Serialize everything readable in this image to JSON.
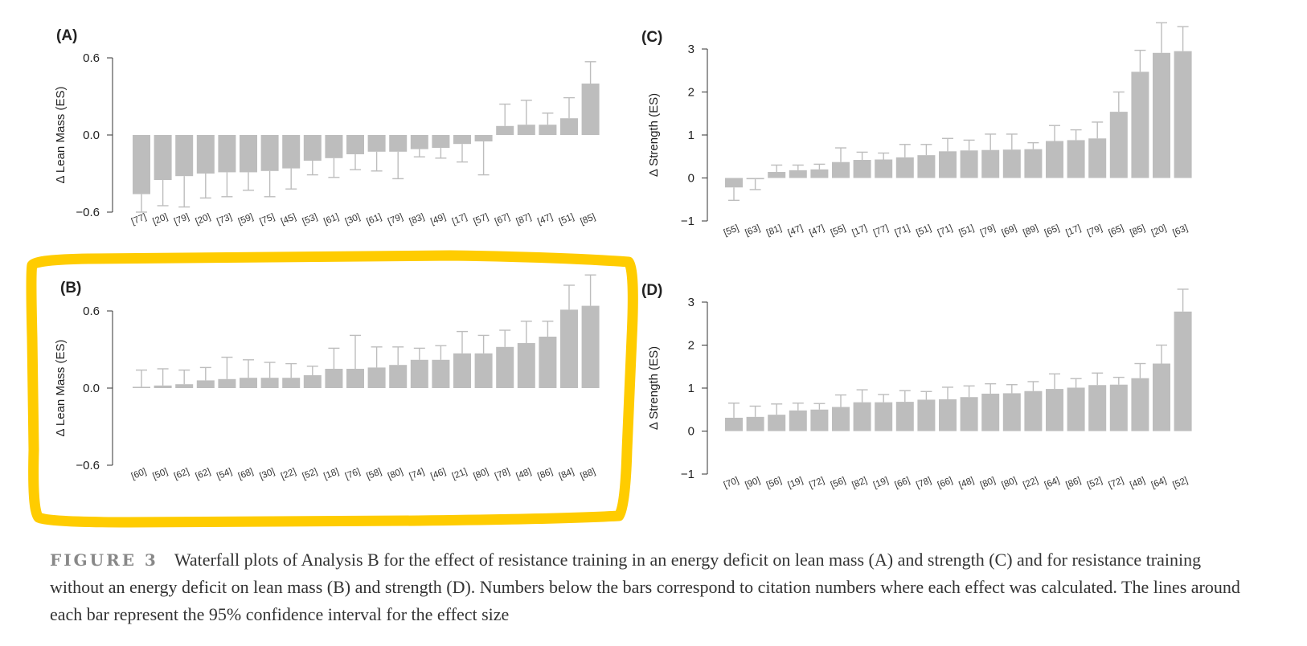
{
  "highlight_color": "#ffcc00",
  "bar_color": "#bdbdbd",
  "caption": {
    "label": "FIGURE 3",
    "text": "Waterfall plots of Analysis B for the effect of resistance training in an energy deficit on lean mass (A) and strength (C) and for resistance training without an energy deficit on lean mass (B) and strength (D). Numbers below the bars correspond to citation numbers where each effect was calculated. The lines around each bar represent the 95% confidence interval for the effect size"
  },
  "chart_data": [
    {
      "id": "A",
      "panel_label": "(A)",
      "type": "bar",
      "ylabel": "Δ Lean Mass (ES)",
      "ylim": [
        -0.6,
        0.6
      ],
      "yticks": [
        -0.6,
        0.0,
        0.6
      ],
      "ytick_labels": [
        "−0.6",
        "0.0",
        "0.6"
      ],
      "categories": [
        "[77]",
        "[20]",
        "[79]",
        "[20]",
        "[73]",
        "[59]",
        "[75]",
        "[45]",
        "[53]",
        "[61]",
        "[30]",
        "[61]",
        "[79]",
        "[83]",
        "[49]",
        "[17]",
        "[57]",
        "[67]",
        "[87]",
        "[47]",
        "[51]",
        "[85]"
      ],
      "values": [
        -0.46,
        -0.35,
        -0.32,
        -0.3,
        -0.29,
        -0.29,
        -0.28,
        -0.26,
        -0.2,
        -0.18,
        -0.15,
        -0.13,
        -0.13,
        -0.11,
        -0.1,
        -0.07,
        -0.05,
        0.07,
        0.08,
        0.08,
        0.13,
        0.4
      ],
      "ci_upper": [
        0.0,
        0.0,
        0.0,
        0.0,
        0.0,
        0.0,
        0.0,
        0.0,
        0.0,
        0.0,
        0.0,
        0.0,
        0.0,
        0.0,
        0.0,
        0.0,
        0.0,
        0.24,
        0.27,
        0.17,
        0.29,
        0.57
      ],
      "ci_lower": [
        -0.6,
        -0.55,
        -0.56,
        -0.49,
        -0.48,
        -0.43,
        -0.48,
        -0.42,
        -0.31,
        -0.33,
        -0.27,
        -0.28,
        -0.34,
        -0.17,
        -0.18,
        -0.21,
        -0.31,
        0.0,
        0.0,
        0.0,
        0.0,
        0.0
      ],
      "highlighted": false
    },
    {
      "id": "B",
      "panel_label": "(B)",
      "type": "bar",
      "ylabel": "Δ Lean Mass (ES)",
      "ylim": [
        -0.6,
        0.6
      ],
      "yticks": [
        -0.6,
        0.0,
        0.6
      ],
      "ytick_labels": [
        "−0.6",
        "0.0",
        "0.6"
      ],
      "categories": [
        "[60]",
        "[50]",
        "[62]",
        "[62]",
        "[54]",
        "[68]",
        "[30]",
        "[22]",
        "[52]",
        "[18]",
        "[76]",
        "[58]",
        "[80]",
        "[74]",
        "[46]",
        "[21]",
        "[80]",
        "[78]",
        "[48]",
        "[86]",
        "[84]",
        "[88]"
      ],
      "values": [
        0.01,
        0.02,
        0.03,
        0.06,
        0.07,
        0.08,
        0.08,
        0.08,
        0.1,
        0.15,
        0.15,
        0.16,
        0.18,
        0.22,
        0.22,
        0.27,
        0.27,
        0.32,
        0.35,
        0.4,
        0.61,
        0.64
      ],
      "ci_upper": [
        0.14,
        0.15,
        0.14,
        0.16,
        0.24,
        0.22,
        0.2,
        0.19,
        0.17,
        0.31,
        0.41,
        0.32,
        0.32,
        0.31,
        0.33,
        0.44,
        0.41,
        0.45,
        0.52,
        0.52,
        0.8,
        0.88
      ],
      "ci_lower": [
        0,
        0,
        0,
        0,
        0,
        0,
        0,
        0,
        0,
        0,
        0,
        0,
        0,
        0,
        0,
        0,
        0,
        0,
        0,
        0,
        0,
        0
      ],
      "highlighted": true
    },
    {
      "id": "C",
      "panel_label": "(C)",
      "type": "bar",
      "ylabel": "Δ Strength (ES)",
      "ylim": [
        -1,
        3
      ],
      "yticks": [
        -1,
        0,
        1,
        2,
        3
      ],
      "ytick_labels": [
        "−1",
        "0",
        "1",
        "2",
        "3"
      ],
      "categories": [
        "[55]",
        "[63]",
        "[81]",
        "[47]",
        "[47]",
        "[55]",
        "[17]",
        "[77]",
        "[71]",
        "[51]",
        "[71]",
        "[51]",
        "[79]",
        "[69]",
        "[89]",
        "[65]",
        "[17]",
        "[79]",
        "[65]",
        "[85]",
        "[20]",
        "[63]"
      ],
      "values": [
        -0.22,
        -0.03,
        0.14,
        0.18,
        0.2,
        0.37,
        0.42,
        0.43,
        0.48,
        0.53,
        0.62,
        0.64,
        0.65,
        0.66,
        0.67,
        0.86,
        0.88,
        0.92,
        1.54,
        2.47,
        2.91,
        2.95
      ],
      "ci_upper": [
        0.0,
        0.0,
        0.3,
        0.3,
        0.32,
        0.7,
        0.6,
        0.58,
        0.78,
        0.78,
        0.92,
        0.88,
        1.02,
        1.02,
        0.82,
        1.22,
        1.12,
        1.3,
        2.0,
        2.97,
        3.61,
        3.52
      ],
      "ci_lower": [
        -0.52,
        -0.27,
        0,
        0,
        0,
        0,
        0,
        0,
        0,
        0,
        0,
        0,
        0,
        0,
        0,
        0,
        0,
        0,
        0,
        0,
        0,
        0
      ],
      "highlighted": false
    },
    {
      "id": "D",
      "panel_label": "(D)",
      "type": "bar",
      "ylabel": "Δ Strength (ES)",
      "ylim": [
        -1,
        3
      ],
      "yticks": [
        -1,
        0,
        1,
        2,
        3
      ],
      "ytick_labels": [
        "−1",
        "0",
        "1",
        "2",
        "3"
      ],
      "categories": [
        "[70]",
        "[90]",
        "[56]",
        "[19]",
        "[72]",
        "[56]",
        "[82]",
        "[19]",
        "[66]",
        "[78]",
        "[66]",
        "[48]",
        "[80]",
        "[80]",
        "[22]",
        "[64]",
        "[86]",
        "[52]",
        "[72]",
        "[48]",
        "[64]",
        "[52]"
      ],
      "values": [
        0.31,
        0.33,
        0.38,
        0.48,
        0.5,
        0.56,
        0.67,
        0.67,
        0.68,
        0.73,
        0.74,
        0.79,
        0.87,
        0.88,
        0.93,
        0.98,
        1.01,
        1.07,
        1.08,
        1.23,
        1.57,
        2.78
      ],
      "ci_upper": [
        0.65,
        0.58,
        0.63,
        0.65,
        0.64,
        0.84,
        0.96,
        0.85,
        0.94,
        0.92,
        1.02,
        1.05,
        1.1,
        1.08,
        1.15,
        1.33,
        1.22,
        1.35,
        1.25,
        1.57,
        2.0,
        3.3
      ],
      "ci_lower": [
        0,
        0,
        0,
        0,
        0,
        0,
        0,
        0,
        0,
        0,
        0,
        0,
        0,
        0,
        0,
        0,
        0,
        0,
        0,
        0,
        0,
        0
      ],
      "highlighted": false
    }
  ]
}
